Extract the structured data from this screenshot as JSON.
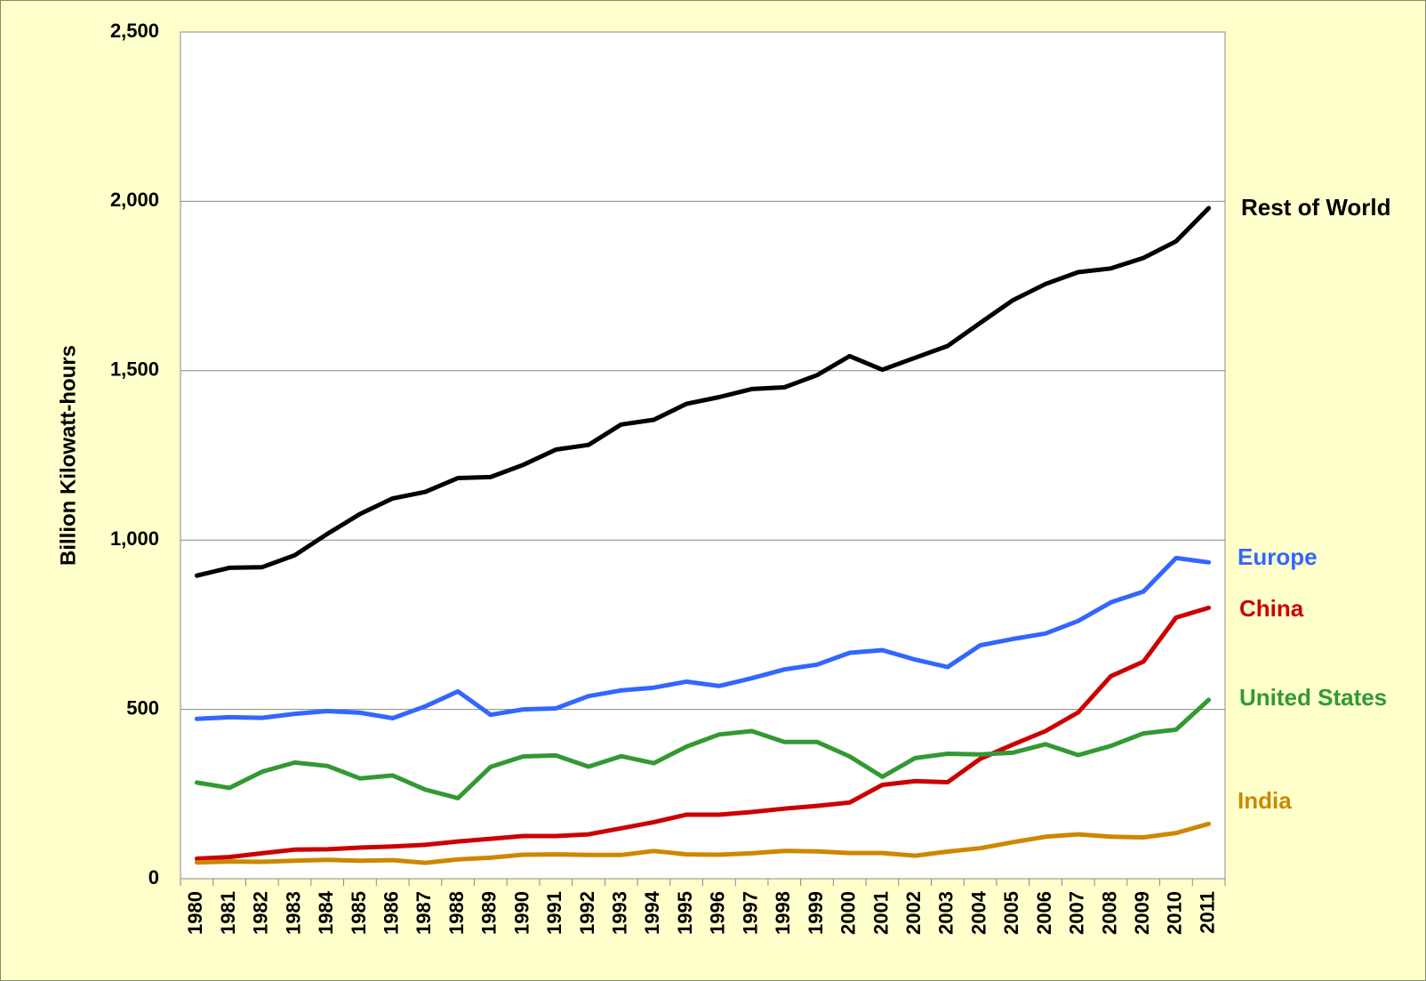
{
  "chart_data": {
    "type": "line",
    "title": "",
    "xlabel": "",
    "ylabel": "Billion Kilowatt-hours",
    "ylim": [
      0,
      2500
    ],
    "yticks": [
      0,
      500,
      1000,
      1500,
      2000,
      2500
    ],
    "ytick_labels": [
      "0",
      "500",
      "1,000",
      "1,500",
      "2,000",
      "2,500"
    ],
    "grid": true,
    "legend": "inline-right",
    "x": [
      "1980",
      "1981",
      "1982",
      "1983",
      "1984",
      "1985",
      "1986",
      "1987",
      "1988",
      "1989",
      "1990",
      "1991",
      "1992",
      "1993",
      "1994",
      "1995",
      "1996",
      "1997",
      "1998",
      "1999",
      "2000",
      "2001",
      "2002",
      "2003",
      "2004",
      "2005",
      "2006",
      "2007",
      "2008",
      "2009",
      "2010",
      "2011"
    ],
    "series": [
      {
        "name": "Rest of World",
        "color": "#000000",
        "values": [
          895,
          918,
          920,
          955,
          1018,
          1077,
          1123,
          1142,
          1183,
          1186,
          1222,
          1267,
          1281,
          1341,
          1355,
          1402,
          1422,
          1446,
          1451,
          1487,
          1543,
          1503,
          1538,
          1573,
          1641,
          1708,
          1756,
          1791,
          1802,
          1833,
          1882,
          1980
        ]
      },
      {
        "name": "Europe",
        "color": "#3366ff",
        "values": [
          472,
          477,
          475,
          487,
          495,
          490,
          474,
          509,
          553,
          484,
          500,
          503,
          539,
          556,
          564,
          582,
          569,
          592,
          618,
          632,
          667,
          675,
          647,
          625,
          689,
          708,
          724,
          761,
          816,
          848,
          947,
          934
        ]
      },
      {
        "name": "China",
        "color": "#cc0000",
        "values": [
          59,
          64,
          75,
          86,
          87,
          92,
          95,
          100,
          110,
          118,
          126,
          126,
          131,
          149,
          167,
          189,
          189,
          197,
          207,
          215,
          225,
          277,
          288,
          285,
          354,
          396,
          436,
          491,
          598,
          641,
          771,
          800
        ]
      },
      {
        "name": "United States",
        "color": "#339933",
        "values": [
          284,
          268,
          316,
          343,
          333,
          296,
          305,
          263,
          238,
          330,
          361,
          364,
          331,
          362,
          341,
          390,
          426,
          436,
          404,
          404,
          361,
          301,
          356,
          369,
          367,
          372,
          397,
          365,
          392,
          429,
          440,
          528
        ]
      },
      {
        "name": "India",
        "color": "#cc8800",
        "values": [
          48,
          51,
          50,
          53,
          56,
          53,
          55,
          47,
          57,
          62,
          71,
          72,
          70,
          70,
          82,
          72,
          71,
          75,
          82,
          81,
          76,
          76,
          68,
          80,
          90,
          108,
          124,
          131,
          124,
          122,
          135,
          162
        ]
      }
    ]
  }
}
